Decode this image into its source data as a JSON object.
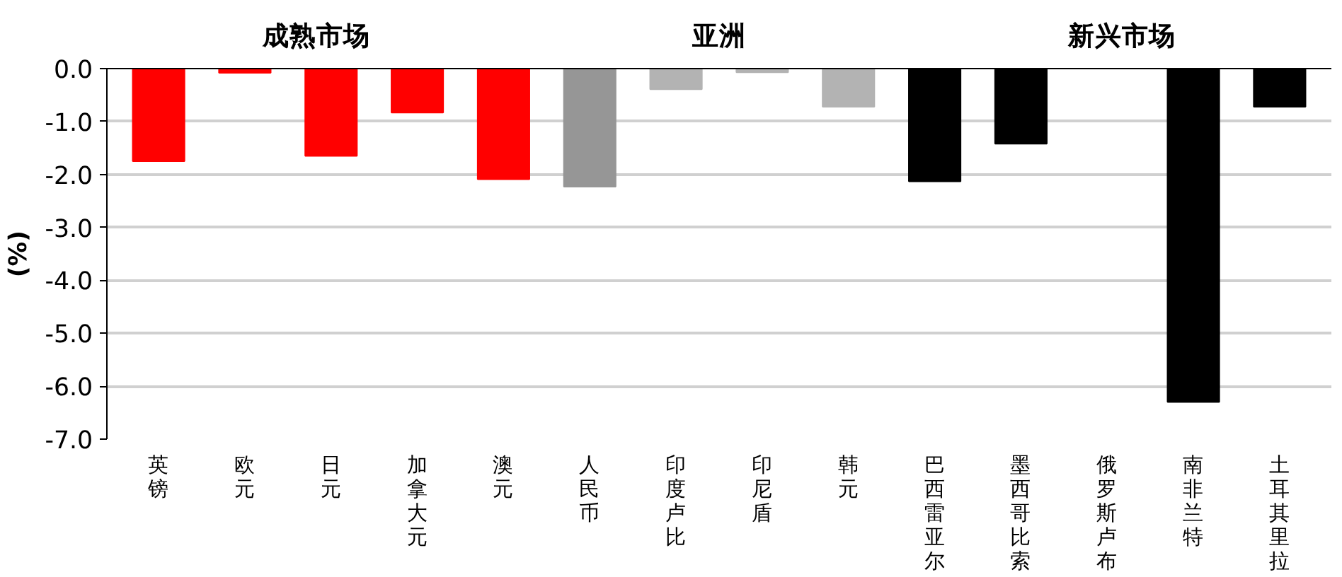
{
  "chart_data": {
    "type": "bar",
    "ylabel": "(%)",
    "categories": [
      "英镑",
      "欧元",
      "日元",
      "加拿大元",
      "澳元",
      "人民币",
      "印度卢比",
      "印尼盾",
      "韩元",
      "巴西雷亚尔",
      "墨西哥比索",
      "俄罗斯卢布",
      "南非兰特",
      "土耳其里拉"
    ],
    "values": [
      -1.75,
      -0.08,
      -1.65,
      -0.83,
      -2.09,
      -2.23,
      -0.39,
      -0.07,
      -0.72,
      -2.13,
      -1.42,
      0,
      -6.3,
      -0.72
    ],
    "colors": [
      "#ff0000",
      "#ff0000",
      "#ff0000",
      "#ff0000",
      "#ff0000",
      "#969696",
      "#b3b3b3",
      "#b3b3b3",
      "#b3b3b3",
      "#000000",
      "#000000",
      "#000000",
      "#000000",
      "#000000"
    ],
    "ylim": [
      -7.0,
      0.0
    ],
    "yticks": [
      {
        "value": 0,
        "label": "0.0"
      },
      {
        "value": -1,
        "label": "-1.0"
      },
      {
        "value": -2,
        "label": "-2.0"
      },
      {
        "value": -3,
        "label": "-3.0"
      },
      {
        "value": -4,
        "label": "-4.0"
      },
      {
        "value": -5,
        "label": "-5.0"
      },
      {
        "value": -6,
        "label": "-6.0"
      },
      {
        "value": -7,
        "label": "-7.0"
      }
    ],
    "grid": "y",
    "annotations": [
      "成熟市场",
      "亚洲",
      "新兴市场"
    ]
  }
}
